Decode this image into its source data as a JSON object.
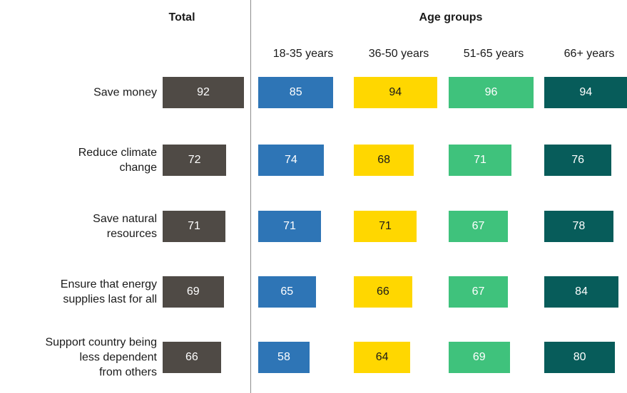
{
  "chart_data": {
    "type": "bar",
    "orientation": "horizontal",
    "group_label": "Age groups",
    "categories": [
      "Save money",
      "Reduce climate\nchange",
      "Save natural\nresources",
      "Ensure that energy\nsupplies last for all",
      "Support country being\nless dependent\nfrom others"
    ],
    "series": [
      {
        "name": "Total",
        "color": "#4f4a45",
        "values": [
          92,
          72,
          71,
          69,
          66
        ]
      },
      {
        "name": "18-35 years",
        "color": "#2e75b6",
        "values": [
          85,
          74,
          71,
          65,
          58
        ]
      },
      {
        "name": "36-50 years",
        "color": "#ffd700",
        "values": [
          94,
          68,
          71,
          66,
          64
        ]
      },
      {
        "name": "51-65 years",
        "color": "#3fc27c",
        "values": [
          96,
          71,
          67,
          67,
          69
        ]
      },
      {
        "name": "66+ years",
        "color": "#075c5a",
        "values": [
          94,
          76,
          78,
          84,
          80
        ]
      }
    ],
    "xlim": [
      0,
      100
    ]
  }
}
